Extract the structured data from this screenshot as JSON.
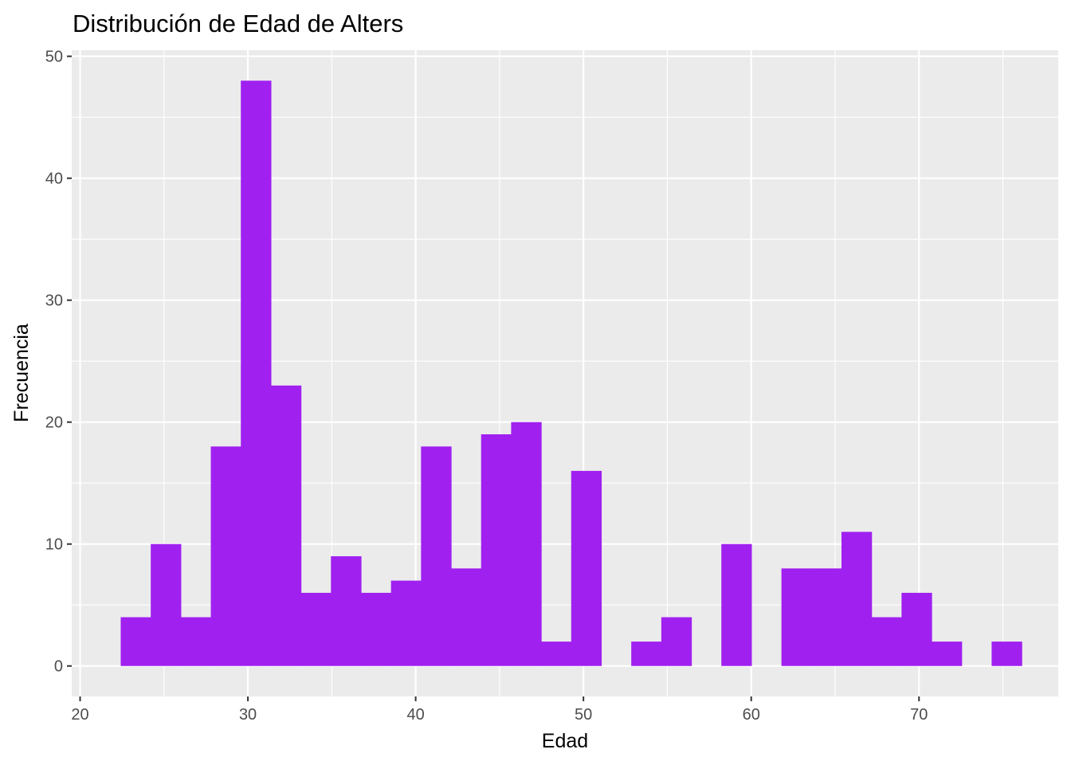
{
  "chart_data": {
    "type": "bar",
    "title": "Distribución de Edad de Alters",
    "xlabel": "Edad",
    "ylabel": "Frecuencia",
    "xlim": [
      19.5,
      78.3
    ],
    "ylim": [
      -2.5,
      50.5
    ],
    "x_ticks": [
      20,
      30,
      40,
      50,
      60,
      70
    ],
    "y_ticks": [
      0,
      10,
      20,
      30,
      40,
      50
    ],
    "x_tick_labels": [
      "20",
      "30",
      "40",
      "50",
      "60",
      "70"
    ],
    "y_tick_labels": [
      "0",
      "10",
      "20",
      "30",
      "40",
      "50"
    ],
    "bin_width": 1.79,
    "bin_start": 22.42,
    "values": [
      4,
      10,
      4,
      18,
      48,
      23,
      6,
      9,
      6,
      7,
      18,
      8,
      19,
      20,
      2,
      16,
      0,
      2,
      4,
      0,
      10,
      0,
      8,
      8,
      11,
      4,
      6,
      2,
      0,
      2
    ],
    "bar_color": "#A020F0",
    "panel_color": "#EBEBEB",
    "grid": true,
    "legend": "none"
  }
}
